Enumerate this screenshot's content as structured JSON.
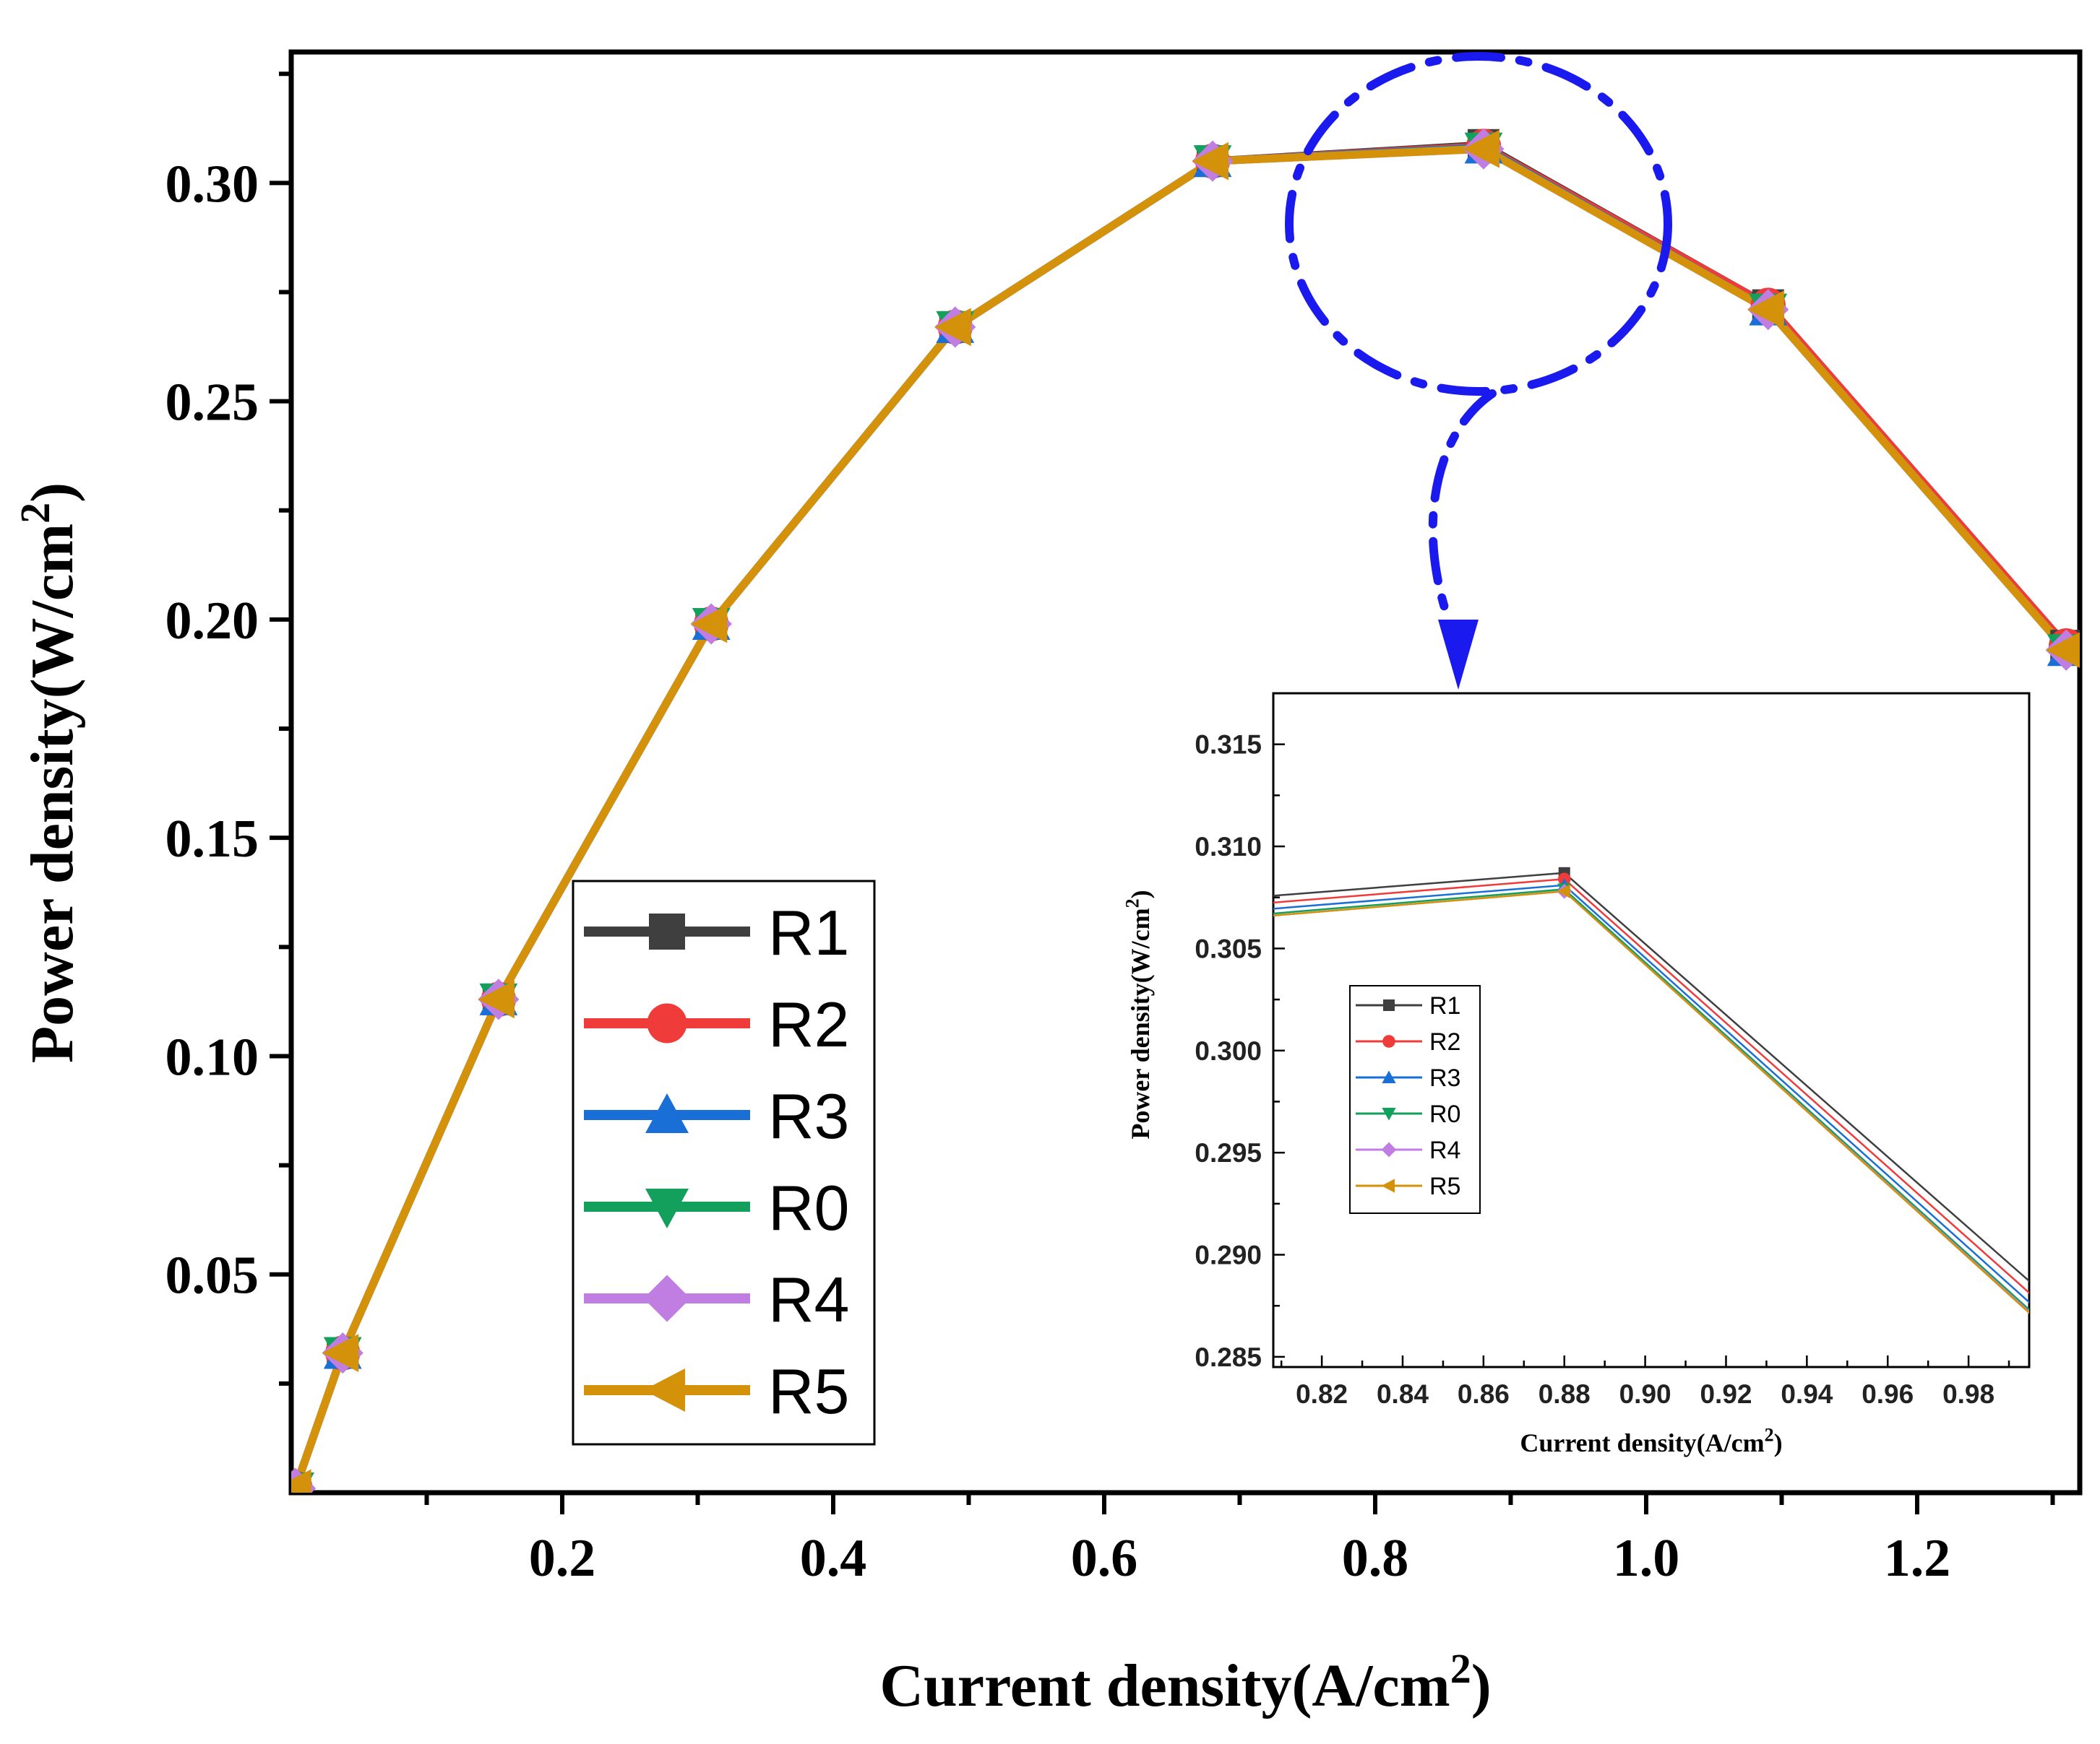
{
  "chart_data": [
    {
      "type": "line",
      "title": "",
      "xlabel": "Current density(A/cm",
      "xlabel_sup": "2",
      "xlabel_close": ")",
      "ylabel": "Power density(W/cm",
      "ylabel_sup": "2",
      "ylabel_close": ")",
      "xlim": [
        0.0,
        1.32
      ],
      "ylim": [
        0.0,
        0.33
      ],
      "x_ticks": [
        0.2,
        0.4,
        0.6,
        0.8,
        1.0,
        1.2
      ],
      "x_tick_labels": [
        "0.2",
        "0.4",
        "0.6",
        "0.8",
        "1.0",
        "1.2"
      ],
      "y_ticks": [
        0.05,
        0.1,
        0.15,
        0.2,
        0.25,
        0.3
      ],
      "y_tick_labels": [
        "0.05",
        "0.10",
        "0.15",
        "0.20",
        "0.25",
        "0.30"
      ],
      "legend_position": "center-left",
      "x": [
        0.003,
        0.038,
        0.153,
        0.31,
        0.49,
        0.68,
        0.88,
        1.09,
        1.31
      ],
      "series": [
        {
          "name": "R1",
          "color": "#3f3f3f",
          "marker": "square",
          "values": [
            0.001,
            0.032,
            0.113,
            0.199,
            0.267,
            0.305,
            0.3087,
            0.272,
            0.194
          ]
        },
        {
          "name": "R2",
          "color": "#f03b3b",
          "marker": "circle",
          "values": [
            0.001,
            0.032,
            0.113,
            0.199,
            0.267,
            0.305,
            0.3084,
            0.272,
            0.194
          ]
        },
        {
          "name": "R3",
          "color": "#1a6fd6",
          "marker": "triangle-up",
          "values": [
            0.001,
            0.032,
            0.113,
            0.199,
            0.267,
            0.305,
            0.3081,
            0.271,
            0.193
          ]
        },
        {
          "name": "R0",
          "color": "#12a05c",
          "marker": "triangle-down",
          "values": [
            0.001,
            0.032,
            0.113,
            0.199,
            0.267,
            0.305,
            0.3079,
            0.271,
            0.193
          ]
        },
        {
          "name": "R4",
          "color": "#c07ee3",
          "marker": "diamond",
          "values": [
            0.001,
            0.032,
            0.113,
            0.199,
            0.267,
            0.305,
            0.3078,
            0.271,
            0.193
          ]
        },
        {
          "name": "R5",
          "color": "#d4920a",
          "marker": "triangle-left",
          "values": [
            0.001,
            0.032,
            0.113,
            0.199,
            0.267,
            0.305,
            0.3078,
            0.271,
            0.193
          ]
        }
      ]
    },
    {
      "type": "line",
      "title": "",
      "xlabel": "Current density(A/cm",
      "xlabel_sup": "2",
      "xlabel_close": ")",
      "ylabel": "Power density(W/cm",
      "ylabel_sup": "2",
      "ylabel_close": ")",
      "xlim": [
        0.808,
        0.995
      ],
      "ylim": [
        0.2845,
        0.3175
      ],
      "x_ticks": [
        0.82,
        0.84,
        0.86,
        0.88,
        0.9,
        0.92,
        0.94,
        0.96,
        0.98
      ],
      "x_tick_labels": [
        "0.82",
        "0.84",
        "0.86",
        "0.88",
        "0.90",
        "0.92",
        "0.94",
        "0.96",
        "0.98"
      ],
      "y_ticks": [
        0.285,
        0.29,
        0.295,
        0.3,
        0.305,
        0.31,
        0.315
      ],
      "y_tick_labels": [
        "0.285",
        "0.290",
        "0.295",
        "0.300",
        "0.305",
        "0.310",
        "0.315"
      ],
      "legend_position": "center-left",
      "series": [
        {
          "name": "R1",
          "color": "#3f3f3f",
          "marker": "square",
          "x": [
            0.68,
            0.88,
            1.09
          ],
          "values": [
            0.3056,
            0.3087,
            0.2722
          ]
        },
        {
          "name": "R2",
          "color": "#f03b3b",
          "marker": "circle",
          "x": [
            0.68,
            0.88,
            1.09
          ],
          "values": [
            0.3052,
            0.3084,
            0.2714
          ]
        },
        {
          "name": "R3",
          "color": "#1a6fd6",
          "marker": "triangle-up",
          "x": [
            0.68,
            0.88,
            1.09
          ],
          "values": [
            0.3049,
            0.3081,
            0.2708
          ]
        },
        {
          "name": "R0",
          "color": "#12a05c",
          "marker": "triangle-down",
          "x": [
            0.68,
            0.88,
            1.09
          ],
          "values": [
            0.3046,
            0.3079,
            0.2703
          ]
        },
        {
          "name": "R4",
          "color": "#c07ee3",
          "marker": "diamond",
          "x": [
            0.68,
            0.88,
            1.09
          ],
          "values": [
            0.3045,
            0.3078,
            0.2702
          ]
        },
        {
          "name": "R5",
          "color": "#d4920a",
          "marker": "triangle-left",
          "x": [
            0.68,
            0.88,
            1.09
          ],
          "values": [
            0.3045,
            0.3078,
            0.2701
          ]
        }
      ]
    }
  ],
  "annotation": {
    "type": "zoom-callout",
    "color": "#1a1aee",
    "description_target": "peak region around x = 0.88"
  }
}
